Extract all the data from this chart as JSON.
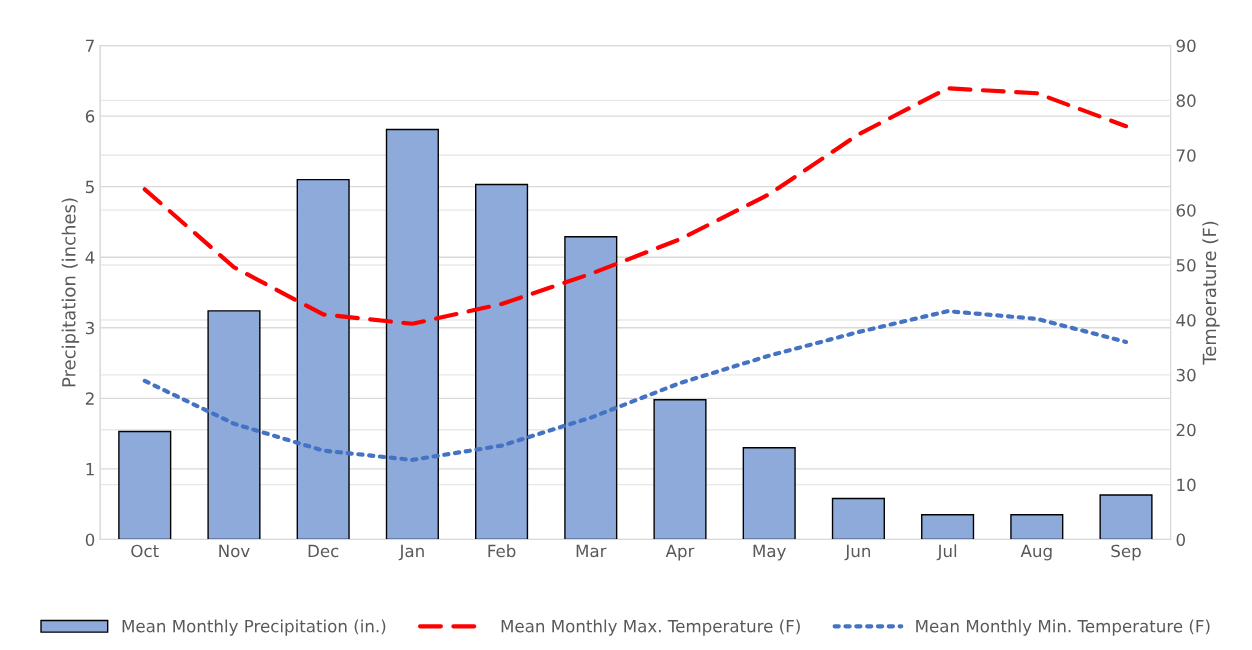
{
  "chart_data": {
    "type": "bar",
    "categories": [
      "Oct",
      "Nov",
      "Dec",
      "Jan",
      "Feb",
      "Mar",
      "Apr",
      "May",
      "Jun",
      "Jul",
      "Aug",
      "Sep"
    ],
    "ylabel": "Precipitation (inches)",
    "y2label": "Temperature (F)",
    "ylim": [
      0,
      7
    ],
    "yticks": [
      0,
      1,
      2,
      3,
      4,
      5,
      6,
      7
    ],
    "y2lim": [
      0,
      90
    ],
    "y2ticks": [
      0,
      10,
      20,
      30,
      40,
      50,
      60,
      70,
      80,
      90
    ],
    "grid": true,
    "legend": "bottom",
    "series": [
      {
        "name": "Mean Monthly Precipitation (in.)",
        "type": "bar",
        "color": "#8eaadb",
        "values": [
          1.53,
          3.24,
          5.1,
          5.81,
          5.03,
          4.29,
          1.98,
          1.3,
          0.58,
          0.35,
          0.35,
          0.63
        ]
      },
      {
        "name": "Mean Monthly Max. Temperature (F)",
        "type": "line",
        "axis": "y2",
        "color": "#ff0000",
        "line_style": "dashed",
        "values": [
          63.8,
          49.6,
          41,
          39.3,
          42.9,
          48.4,
          54.7,
          62.9,
          73.8,
          82.2,
          81.3,
          75.3
        ]
      },
      {
        "name": "Mean Monthly Min. Temperature (F)",
        "type": "line",
        "axis": "y2",
        "color": "#4472c4",
        "line_style": "dotted",
        "values": [
          28.9,
          21.1,
          16.2,
          14.5,
          17.1,
          22.2,
          28.5,
          33.5,
          37.8,
          41.6,
          40.2,
          36
        ]
      }
    ]
  }
}
